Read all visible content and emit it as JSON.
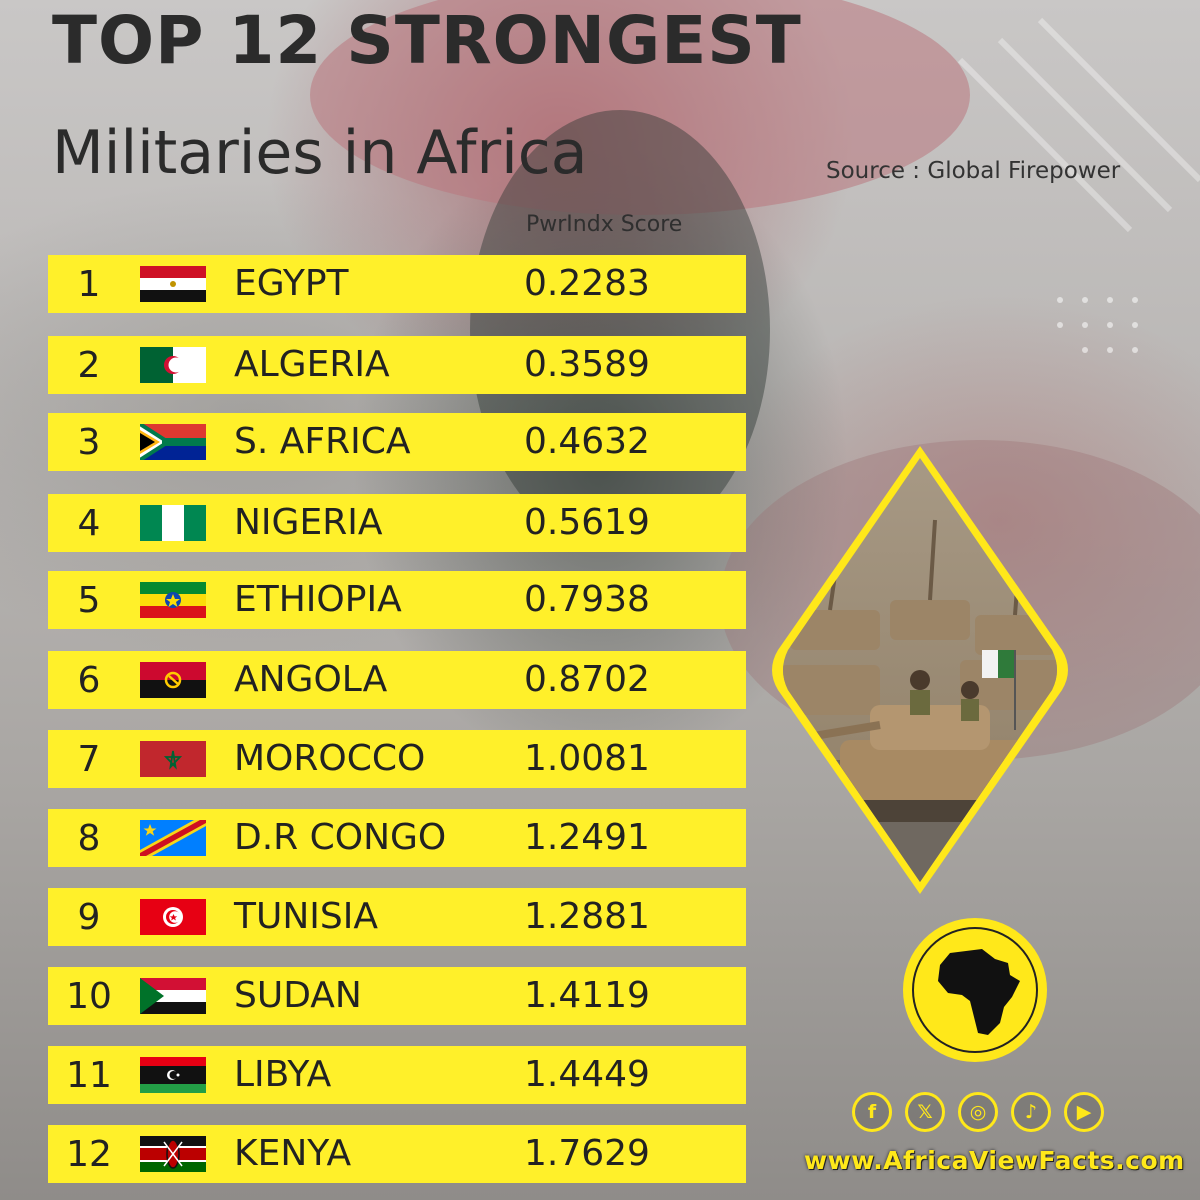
{
  "title_line1": "TOP 12 STRONGEST",
  "title_line2": "Militaries in Africa",
  "source": "Source : Global Firepower",
  "score_header": "PwrIndx Score",
  "website": "www.AfricaViewFacts.com",
  "colors": {
    "row_background": "#fff02a",
    "accent": "#ffe81a",
    "text": "#222222"
  },
  "social_icons": [
    "facebook-icon",
    "x-icon",
    "instagram-icon",
    "tiktok-icon",
    "youtube-icon"
  ],
  "chart_data": {
    "type": "table",
    "columns": [
      "",
      "",
      "PwrIndx Score"
    ],
    "rows": [
      {
        "rank": "1",
        "country": "EGYPT",
        "score": "0.2283",
        "flag": "egypt-flag"
      },
      {
        "rank": "2",
        "country": "ALGERIA",
        "score": "0.3589",
        "flag": "algeria-flag"
      },
      {
        "rank": "3",
        "country": "S. AFRICA",
        "score": "0.4632",
        "flag": "south-africa-flag"
      },
      {
        "rank": "4",
        "country": "NIGERIA",
        "score": "0.5619",
        "flag": "nigeria-flag"
      },
      {
        "rank": "5",
        "country": "ETHIOPIA",
        "score": "0.7938",
        "flag": "ethiopia-flag"
      },
      {
        "rank": "6",
        "country": "ANGOLA",
        "score": "0.8702",
        "flag": "angola-flag"
      },
      {
        "rank": "7",
        "country": "MOROCCO",
        "score": "1.0081",
        "flag": "morocco-flag"
      },
      {
        "rank": "8",
        "country": "D.R CONGO",
        "score": "1.2491",
        "flag": "dr-congo-flag"
      },
      {
        "rank": "9",
        "country": "TUNISIA",
        "score": "1.2881",
        "flag": "tunisia-flag"
      },
      {
        "rank": "10",
        "country": "SUDAN",
        "score": "1.4119",
        "flag": "sudan-flag"
      },
      {
        "rank": "11",
        "country": "LIBYA",
        "score": "1.4449",
        "flag": "libya-flag"
      },
      {
        "rank": "12",
        "country": "KENYA",
        "score": "1.7629",
        "flag": "kenya-flag"
      }
    ]
  }
}
